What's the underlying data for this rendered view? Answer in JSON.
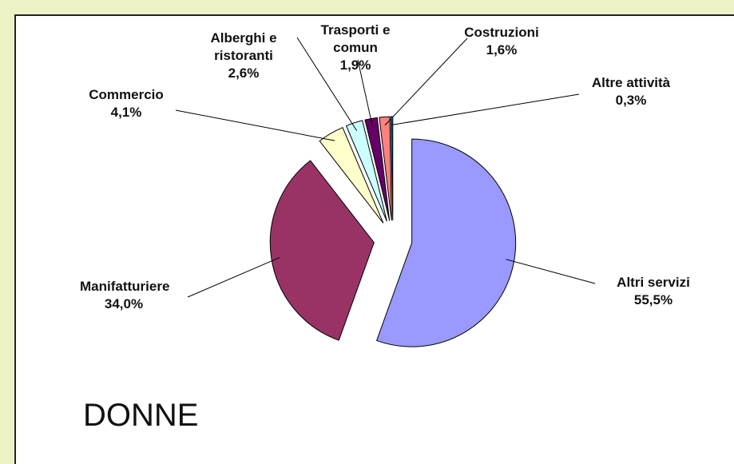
{
  "chart_data": {
    "type": "pie",
    "title": "DONNE",
    "categories": [
      "Altri servizi",
      "Manifatturiere",
      "Commercio",
      "Alberghi e ristoranti",
      "Trasporti e comun",
      "Costruzioni",
      "Altre attività"
    ],
    "values": [
      55.5,
      34.0,
      4.1,
      2.6,
      1.9,
      1.6,
      0.3
    ],
    "value_labels": [
      "55,5%",
      "34,0%",
      "4,1%",
      "2,6%",
      "1,9%",
      "1,6%",
      "0,3%"
    ],
    "colors": [
      "#9999ff",
      "#993366",
      "#ffffcc",
      "#ccffff",
      "#660066",
      "#ff8080",
      "#0066cc"
    ]
  }
}
